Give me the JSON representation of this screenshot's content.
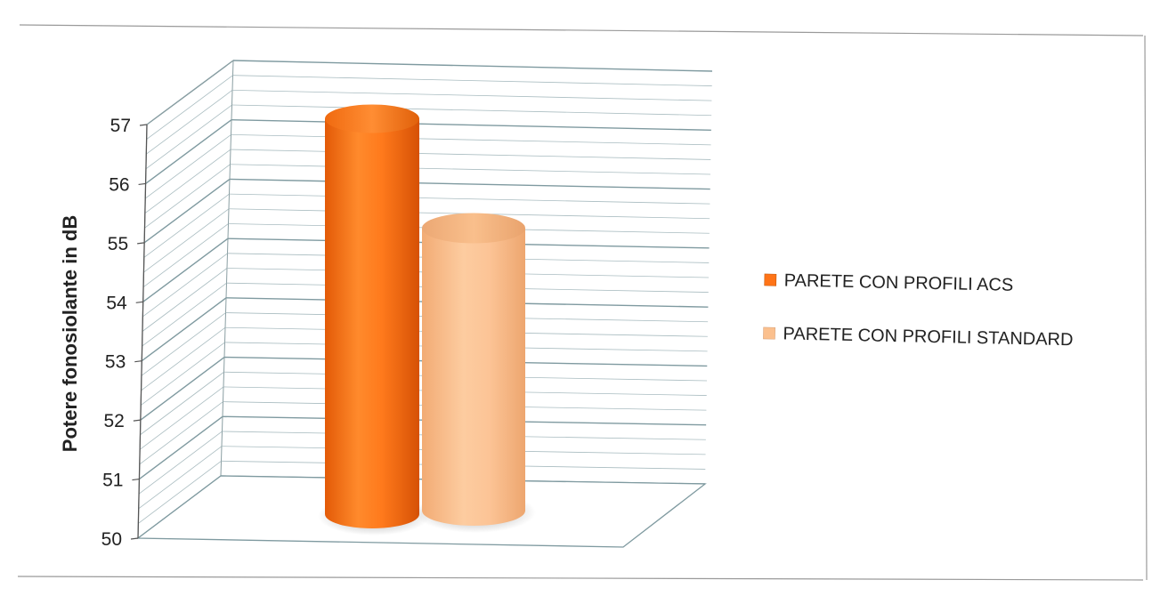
{
  "chart_data": {
    "type": "bar",
    "style": "3d-cylinder",
    "title": "",
    "xlabel": "",
    "ylabel": "Potere fonosiolante in dB",
    "ylim": [
      50,
      57
    ],
    "y_ticks": [
      "50",
      "51",
      "52",
      "53",
      "54",
      "55",
      "56",
      "57"
    ],
    "grid": true,
    "legend_position": "right",
    "series": [
      {
        "name": "PARETE CON PROFILI ACS",
        "value": 57,
        "color": "#ff7417"
      },
      {
        "name": "PARETE CON PROFILI STANDARD",
        "value": 55,
        "color": "#fbc08e"
      }
    ]
  }
}
